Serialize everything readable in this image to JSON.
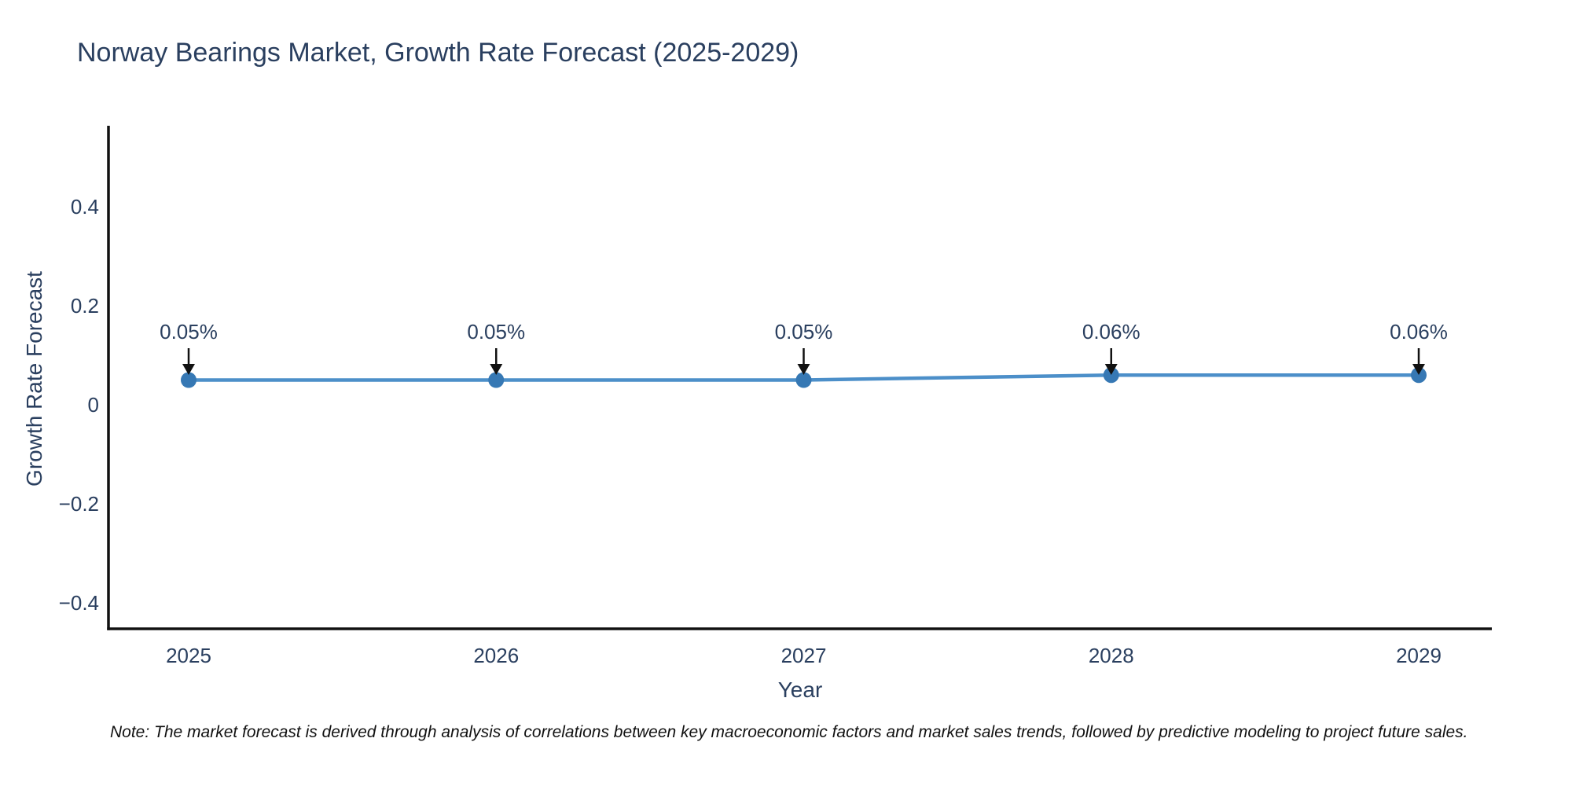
{
  "title": "Norway Bearings Market, Growth Rate Forecast (2025-2029)",
  "footnote": "Note: The market forecast is derived through analysis of correlations between key macroeconomic factors and market sales trends, followed by predictive modeling to project future sales.",
  "chart_data": {
    "type": "line",
    "x": [
      2025,
      2026,
      2027,
      2028,
      2029
    ],
    "series": [
      {
        "name": "Growth Rate Forecast",
        "values": [
          0.05,
          0.05,
          0.05,
          0.06,
          0.06
        ]
      }
    ],
    "point_labels": [
      "0.05%",
      "0.05%",
      "0.05%",
      "0.06%",
      "0.06%"
    ],
    "title": "Norway Bearings Market, Growth Rate Forecast (2025-2029)",
    "xlabel": "Year",
    "ylabel": "Growth Rate Forecast",
    "ylim": [
      -0.46,
      0.56
    ],
    "yticks": [
      0.4,
      0.2,
      0,
      -0.2,
      -0.4
    ],
    "ytick_labels": [
      "0.4",
      "0.2",
      "0",
      "−0.2",
      "−0.4"
    ],
    "xtick_labels": [
      "2025",
      "2026",
      "2027",
      "2028",
      "2029"
    ],
    "grid": false,
    "legend": "none",
    "annotation_arrows": true,
    "colors": {
      "line": "#4c8fc9",
      "marker": "#3678b4",
      "axis": "#111111",
      "arrow": "#111111",
      "text": "#2a3f5f"
    }
  }
}
